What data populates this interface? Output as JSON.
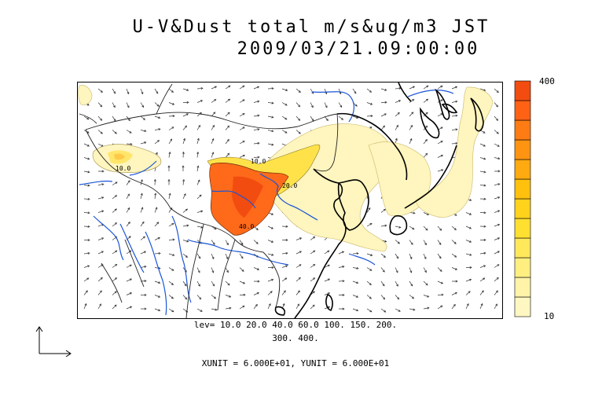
{
  "title": {
    "line1": "U-V&Dust total m/s&ug/m3 JST",
    "line2": "2009/03/21.09:00:00"
  },
  "colorbar": {
    "max_label": "400",
    "min_label": "10",
    "colors": [
      "#fff7c2",
      "#fff3a8",
      "#ffee80",
      "#ffe85a",
      "#ffdf30",
      "#ffd21c",
      "#ffc00e",
      "#ffaa10",
      "#ff9412",
      "#ff7c14",
      "#ff6214",
      "#f24c10"
    ]
  },
  "levels": {
    "line1": "lev= 10.0 20.0 40.0 60.0 100. 150. 200.",
    "line2": "300. 400."
  },
  "units": "XUNIT = 6.000E+01, YUNIT = 6.000E+01",
  "contour_labels": [
    "10.0",
    "10.0",
    "20.0",
    "40.0"
  ],
  "colors": {
    "coast": "#000000",
    "river": "#1a55d6",
    "dust_low": "#fff5be",
    "dust_high": "#ff6a1a"
  }
}
